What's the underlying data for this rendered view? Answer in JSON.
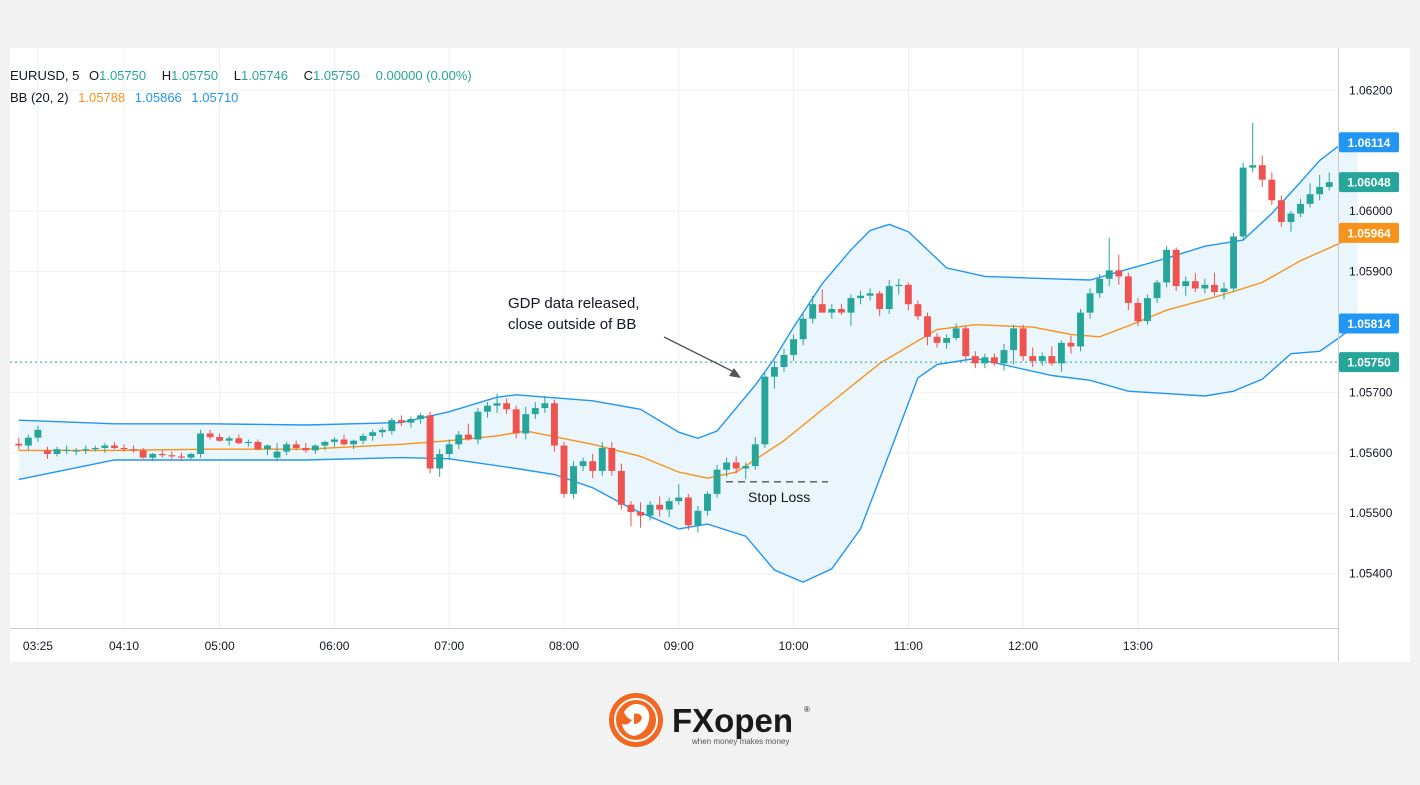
{
  "legend": {
    "symbol": "EURUSD, 5",
    "open_label": "O",
    "open": "1.05750",
    "high_label": "H",
    "high": "1.05750",
    "low_label": "L",
    "low": "1.05746",
    "close_label": "C",
    "close": "1.05750",
    "change": "0.00000 (0.00%)",
    "bb_label": "BB (20, 2)",
    "bb_basis": "1.05788",
    "bb_upper": "1.05866",
    "bb_lower": "1.05710"
  },
  "colors": {
    "up": "#26a69a",
    "down": "#ef5350",
    "bb_basis": "#f7931a",
    "bb_band": "#2196f3",
    "bb_fill": "#e8f3fb"
  },
  "brand": {
    "logo_icon": "lion-icon",
    "name": "FXopen",
    "tagline": "when money makes money"
  },
  "chart_data": {
    "type": "candlestick",
    "ylim": [
      1.0531,
      1.0627
    ],
    "y_ticks": [
      "1.06200",
      "1.06000",
      "1.05900",
      "1.05700",
      "1.05600",
      "1.05500",
      "1.05400"
    ],
    "x_ticks": [
      "03:25",
      "04:10",
      "05:00",
      "06:00",
      "07:00",
      "08:00",
      "09:00",
      "10:00",
      "11:00",
      "12:00",
      "13:00"
    ],
    "price_labels": [
      {
        "text": "1.06114",
        "value": 1.06114,
        "kind": "band"
      },
      {
        "text": "1.06048",
        "value": 1.06048,
        "kind": "price"
      },
      {
        "text": "1.05964",
        "value": 1.05964,
        "kind": "basis"
      },
      {
        "text": "1.05814",
        "value": 1.05814,
        "kind": "band"
      },
      {
        "text": "1.05750",
        "value": 1.0575,
        "kind": "price"
      }
    ],
    "current_price": 1.0575,
    "annotations": {
      "gdp_line1": "GDP data released,",
      "gdp_line2": "close outside of BB",
      "stop_loss": "Stop Loss",
      "stop_loss_price": 1.05552
    },
    "candles": [
      [
        1.05615,
        1.05625,
        1.05605,
        1.05612
      ],
      [
        1.05612,
        1.0563,
        1.05605,
        1.05625
      ],
      [
        1.05625,
        1.05645,
        1.05618,
        1.05638
      ],
      [
        1.05604,
        1.0561,
        1.0559,
        1.05598
      ],
      [
        1.05598,
        1.0561,
        1.05594,
        1.05606
      ],
      [
        1.05604,
        1.05612,
        1.05598,
        1.05605
      ],
      [
        1.05602,
        1.05608,
        1.05596,
        1.05604
      ],
      [
        1.05604,
        1.05612,
        1.05598,
        1.05606
      ],
      [
        1.05606,
        1.05612,
        1.05602,
        1.05608
      ],
      [
        1.05608,
        1.05616,
        1.056,
        1.05612
      ],
      [
        1.05612,
        1.05618,
        1.05606,
        1.05608
      ],
      [
        1.05608,
        1.05614,
        1.05602,
        1.05606
      ],
      [
        1.05606,
        1.05612,
        1.056,
        1.05604
      ],
      [
        1.05604,
        1.05608,
        1.0559,
        1.05592
      ],
      [
        1.05592,
        1.056,
        1.05586,
        1.05598
      ],
      [
        1.05598,
        1.05604,
        1.05592,
        1.05596
      ],
      [
        1.05596,
        1.05602,
        1.0559,
        1.05594
      ],
      [
        1.05594,
        1.056,
        1.05586,
        1.05592
      ],
      [
        1.05592,
        1.056,
        1.05588,
        1.05598
      ],
      [
        1.05598,
        1.05638,
        1.05592,
        1.05632
      ],
      [
        1.05632,
        1.05638,
        1.05622,
        1.05626
      ],
      [
        1.05626,
        1.05632,
        1.05618,
        1.0562
      ],
      [
        1.0562,
        1.05628,
        1.05612,
        1.05624
      ],
      [
        1.05624,
        1.0563,
        1.05614,
        1.05616
      ],
      [
        1.05616,
        1.05622,
        1.0561,
        1.05618
      ],
      [
        1.05618,
        1.05622,
        1.05604,
        1.05606
      ],
      [
        1.05606,
        1.05614,
        1.05596,
        1.05612
      ],
      [
        1.05592,
        1.05616,
        1.05586,
        1.05602
      ],
      [
        1.05602,
        1.05618,
        1.05596,
        1.05614
      ],
      [
        1.05614,
        1.0562,
        1.05604,
        1.05608
      ],
      [
        1.05608,
        1.05616,
        1.056,
        1.05604
      ],
      [
        1.05604,
        1.05614,
        1.05598,
        1.05612
      ],
      [
        1.05612,
        1.0562,
        1.05604,
        1.05618
      ],
      [
        1.05618,
        1.05626,
        1.0561,
        1.05622
      ],
      [
        1.05622,
        1.0563,
        1.05612,
        1.05614
      ],
      [
        1.05614,
        1.05622,
        1.05606,
        1.0562
      ],
      [
        1.0562,
        1.05632,
        1.05614,
        1.05628
      ],
      [
        1.05628,
        1.05638,
        1.0562,
        1.05634
      ],
      [
        1.05634,
        1.05642,
        1.05626,
        1.05638
      ],
      [
        1.05636,
        1.05658,
        1.0563,
        1.05654
      ],
      [
        1.05654,
        1.05662,
        1.05644,
        1.0565
      ],
      [
        1.0565,
        1.0566,
        1.05642,
        1.05656
      ],
      [
        1.05656,
        1.05666,
        1.05648,
        1.05662
      ],
      [
        1.05662,
        1.05668,
        1.05566,
        1.05574
      ],
      [
        1.05574,
        1.05606,
        1.0556,
        1.05598
      ],
      [
        1.05598,
        1.05622,
        1.05588,
        1.05614
      ],
      [
        1.05614,
        1.05636,
        1.05606,
        1.0563
      ],
      [
        1.0563,
        1.05648,
        1.0562,
        1.05622
      ],
      [
        1.05622,
        1.05674,
        1.05614,
        1.05668
      ],
      [
        1.05668,
        1.05684,
        1.05658,
        1.05678
      ],
      [
        1.05678,
        1.05698,
        1.05666,
        1.05682
      ],
      [
        1.05682,
        1.0569,
        1.05664,
        1.05672
      ],
      [
        1.05672,
        1.05678,
        1.05624,
        1.05632
      ],
      [
        1.05632,
        1.05676,
        1.05622,
        1.05664
      ],
      [
        1.05664,
        1.05684,
        1.05656,
        1.05674
      ],
      [
        1.05674,
        1.05694,
        1.05666,
        1.05682
      ],
      [
        1.05682,
        1.05688,
        1.05602,
        1.05612
      ],
      [
        1.05612,
        1.05618,
        1.05526,
        1.05532
      ],
      [
        1.05532,
        1.05586,
        1.05524,
        1.05578
      ],
      [
        1.05578,
        1.05592,
        1.0557,
        1.05586
      ],
      [
        1.05586,
        1.05598,
        1.05558,
        1.0557
      ],
      [
        1.0557,
        1.05618,
        1.05562,
        1.05608
      ],
      [
        1.05608,
        1.05618,
        1.05562,
        1.0557
      ],
      [
        1.0557,
        1.05582,
        1.05506,
        1.05514
      ],
      [
        1.05514,
        1.0552,
        1.05478,
        1.05502
      ],
      [
        1.05502,
        1.05518,
        1.05476,
        1.05496
      ],
      [
        1.05496,
        1.0552,
        1.05488,
        1.05514
      ],
      [
        1.05514,
        1.05528,
        1.05494,
        1.05506
      ],
      [
        1.05506,
        1.05526,
        1.05494,
        1.0552
      ],
      [
        1.0552,
        1.05548,
        1.05514,
        1.05526
      ],
      [
        1.05526,
        1.05532,
        1.05472,
        1.0548
      ],
      [
        1.0548,
        1.05512,
        1.05468,
        1.05504
      ],
      [
        1.05504,
        1.05536,
        1.05496,
        1.05532
      ],
      [
        1.05532,
        1.0558,
        1.05526,
        1.05572
      ],
      [
        1.05572,
        1.05592,
        1.0556,
        1.05584
      ],
      [
        1.05584,
        1.05594,
        1.05566,
        1.05574
      ],
      [
        1.05574,
        1.05584,
        1.05556,
        1.05578
      ],
      [
        1.05578,
        1.05626,
        1.05572,
        1.05614
      ],
      [
        1.05614,
        1.05732,
        1.05608,
        1.05726
      ],
      [
        1.05726,
        1.05752,
        1.05706,
        1.05742
      ],
      [
        1.05742,
        1.05772,
        1.05734,
        1.05762
      ],
      [
        1.05762,
        1.05796,
        1.05752,
        1.05788
      ],
      [
        1.05788,
        1.0583,
        1.05778,
        1.05822
      ],
      [
        1.05822,
        1.0586,
        1.05814,
        1.05846
      ],
      [
        1.05846,
        1.0587,
        1.05834,
        1.05832
      ],
      [
        1.05832,
        1.05846,
        1.05822,
        1.05838
      ],
      [
        1.05838,
        1.05846,
        1.05828,
        1.05832
      ],
      [
        1.05832,
        1.05862,
        1.0581,
        1.05856
      ],
      [
        1.05856,
        1.05868,
        1.05846,
        1.0586
      ],
      [
        1.0586,
        1.05872,
        1.05852,
        1.05864
      ],
      [
        1.05864,
        1.05868,
        1.05826,
        1.05838
      ],
      [
        1.05838,
        1.05886,
        1.0583,
        1.05876
      ],
      [
        1.05876,
        1.05888,
        1.05862,
        1.05878
      ],
      [
        1.05878,
        1.05882,
        1.05836,
        1.05846
      ],
      [
        1.05846,
        1.05852,
        1.0582,
        1.05826
      ],
      [
        1.05826,
        1.05832,
        1.05778,
        1.05792
      ],
      [
        1.05792,
        1.05798,
        1.05774,
        1.05782
      ],
      [
        1.05782,
        1.05796,
        1.05772,
        1.0579
      ],
      [
        1.0579,
        1.05814,
        1.05786,
        1.05806
      ],
      [
        1.05806,
        1.0581,
        1.05754,
        1.0576
      ],
      [
        1.0576,
        1.05768,
        1.0574,
        1.05748
      ],
      [
        1.05748,
        1.05764,
        1.0574,
        1.05758
      ],
      [
        1.05758,
        1.05764,
        1.05744,
        1.05748
      ],
      [
        1.05748,
        1.0578,
        1.05736,
        1.0577
      ],
      [
        1.0577,
        1.05812,
        1.05746,
        1.05806
      ],
      [
        1.05806,
        1.05812,
        1.05752,
        1.0576
      ],
      [
        1.0576,
        1.05774,
        1.05742,
        1.05752
      ],
      [
        1.05752,
        1.05766,
        1.05744,
        1.0576
      ],
      [
        1.0576,
        1.05776,
        1.05744,
        1.05748
      ],
      [
        1.05748,
        1.05786,
        1.05734,
        1.05782
      ],
      [
        1.05782,
        1.05794,
        1.05764,
        1.05776
      ],
      [
        1.05776,
        1.05838,
        1.05768,
        1.05832
      ],
      [
        1.05832,
        1.05872,
        1.05822,
        1.05864
      ],
      [
        1.05864,
        1.05896,
        1.05856,
        1.05888
      ],
      [
        1.05888,
        1.05956,
        1.05876,
        1.05902
      ],
      [
        1.05902,
        1.05928,
        1.05878,
        1.05892
      ],
      [
        1.05892,
        1.05898,
        1.05836,
        1.05848
      ],
      [
        1.05848,
        1.05856,
        1.0581,
        1.05818
      ],
      [
        1.05818,
        1.05862,
        1.05812,
        1.05856
      ],
      [
        1.05856,
        1.05886,
        1.05848,
        1.05882
      ],
      [
        1.05882,
        1.05942,
        1.05874,
        1.05936
      ],
      [
        1.05936,
        1.0594,
        1.05868,
        1.05876
      ],
      [
        1.05876,
        1.05892,
        1.0586,
        1.05884
      ],
      [
        1.05884,
        1.05898,
        1.05866,
        1.05872
      ],
      [
        1.05872,
        1.05888,
        1.05864,
        1.05878
      ],
      [
        1.05878,
        1.05898,
        1.0586,
        1.05866
      ],
      [
        1.05866,
        1.05882,
        1.05854,
        1.05872
      ],
      [
        1.05872,
        1.05964,
        1.05866,
        1.05958
      ],
      [
        1.05958,
        1.0608,
        1.05952,
        1.06072
      ],
      [
        1.06072,
        1.06146,
        1.06064,
        1.06076
      ],
      [
        1.06076,
        1.06092,
        1.0604,
        1.06052
      ],
      [
        1.06052,
        1.06064,
        1.0601,
        1.06018
      ],
      [
        1.06018,
        1.06026,
        1.05974,
        1.05982
      ],
      [
        1.05982,
        1.06,
        1.05966,
        1.05996
      ],
      [
        1.05996,
        1.0602,
        1.0599,
        1.06012
      ],
      [
        1.06012,
        1.06046,
        1.06006,
        1.06028
      ],
      [
        1.06028,
        1.0606,
        1.06018,
        1.0604
      ],
      [
        1.0604,
        1.06064,
        1.06034,
        1.06048
      ]
    ],
    "bb_upper": [
      [
        0,
        1.05654
      ],
      [
        10,
        1.05648
      ],
      [
        20,
        1.05648
      ],
      [
        30,
        1.05646
      ],
      [
        40,
        1.0565
      ],
      [
        45,
        1.05668
      ],
      [
        50,
        1.05692
      ],
      [
        52,
        1.05696
      ],
      [
        60,
        1.05686
      ],
      [
        65,
        1.05672
      ],
      [
        69,
        1.05634
      ],
      [
        71,
        1.05624
      ],
      [
        73,
        1.05636
      ],
      [
        75,
        1.05674
      ],
      [
        77,
        1.05712
      ],
      [
        79,
        1.05756
      ],
      [
        81,
        1.05808
      ],
      [
        84,
        1.0588
      ],
      [
        87,
        1.05936
      ],
      [
        89,
        1.05968
      ],
      [
        91,
        1.05978
      ],
      [
        93,
        1.05966
      ],
      [
        95,
        1.05936
      ],
      [
        97,
        1.05906
      ],
      [
        101,
        1.05892
      ],
      [
        108,
        1.05888
      ],
      [
        112,
        1.05886
      ],
      [
        116,
        1.05904
      ],
      [
        120,
        1.05922
      ],
      [
        124,
        1.05942
      ],
      [
        128,
        1.05952
      ],
      [
        131,
        1.05996
      ],
      [
        134,
        1.06048
      ],
      [
        136,
        1.06084
      ],
      [
        138,
        1.06108
      ],
      [
        140,
        1.06114
      ]
    ],
    "bb_basis": [
      [
        0,
        1.05604
      ],
      [
        10,
        1.05604
      ],
      [
        20,
        1.05606
      ],
      [
        30,
        1.05606
      ],
      [
        40,
        1.05614
      ],
      [
        45,
        1.0562
      ],
      [
        50,
        1.05628
      ],
      [
        53,
        1.05636
      ],
      [
        60,
        1.05614
      ],
      [
        65,
        1.05594
      ],
      [
        69,
        1.05568
      ],
      [
        72,
        1.05558
      ],
      [
        75,
        1.05568
      ],
      [
        80,
        1.0562
      ],
      [
        85,
        1.05684
      ],
      [
        90,
        1.05748
      ],
      [
        96,
        1.05804
      ],
      [
        100,
        1.05812
      ],
      [
        106,
        1.05808
      ],
      [
        110,
        1.05796
      ],
      [
        113,
        1.05792
      ],
      [
        116,
        1.0581
      ],
      [
        120,
        1.05836
      ],
      [
        126,
        1.05862
      ],
      [
        130,
        1.05882
      ],
      [
        134,
        1.05918
      ],
      [
        138,
        1.05946
      ],
      [
        140,
        1.05964
      ]
    ],
    "bb_lower": [
      [
        0,
        1.05556
      ],
      [
        10,
        1.05588
      ],
      [
        20,
        1.05588
      ],
      [
        30,
        1.05588
      ],
      [
        40,
        1.05592
      ],
      [
        45,
        1.0559
      ],
      [
        52,
        1.05574
      ],
      [
        56,
        1.05564
      ],
      [
        60,
        1.05542
      ],
      [
        64,
        1.05508
      ],
      [
        69,
        1.05474
      ],
      [
        72,
        1.05482
      ],
      [
        76,
        1.05462
      ],
      [
        79,
        1.05406
      ],
      [
        82,
        1.05386
      ],
      [
        85,
        1.05408
      ],
      [
        88,
        1.05474
      ],
      [
        91,
        1.05598
      ],
      [
        94,
        1.05724
      ],
      [
        96,
        1.05746
      ],
      [
        100,
        1.05756
      ],
      [
        104,
        1.05742
      ],
      [
        108,
        1.05728
      ],
      [
        112,
        1.0572
      ],
      [
        116,
        1.05702
      ],
      [
        120,
        1.05698
      ],
      [
        124,
        1.05694
      ],
      [
        127,
        1.05702
      ],
      [
        130,
        1.05722
      ],
      [
        133,
        1.05764
      ],
      [
        136,
        1.05768
      ],
      [
        138,
        1.0579
      ],
      [
        140,
        1.05814
      ]
    ]
  }
}
